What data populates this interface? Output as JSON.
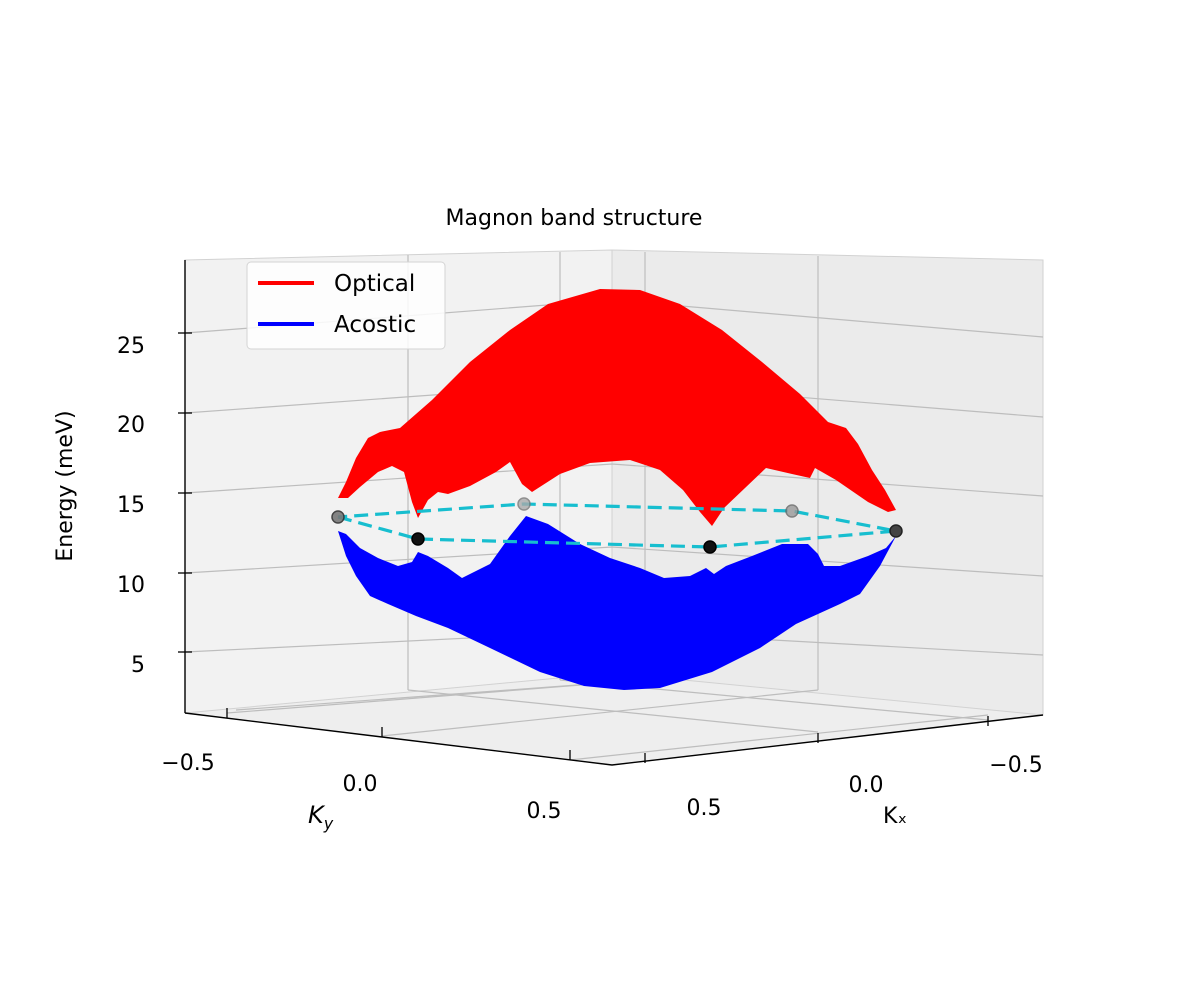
{
  "chart_data": {
    "type": "surface3d",
    "title": "Magnon band structure",
    "xlabel": "Kₓ",
    "ylabel_main": "K",
    "ylabel_sub": "y",
    "zlabel": "Energy (meV)",
    "xticks": [
      "−0.5",
      "0.0",
      "0.5"
    ],
    "yticks": [
      "−0.5",
      "0.0",
      "0.5"
    ],
    "zticks": [
      "5",
      "10",
      "15",
      "20",
      "25"
    ],
    "xlim": [
      -0.7,
      0.7
    ],
    "ylim": [
      -0.7,
      0.7
    ],
    "zlim": [
      1,
      30
    ],
    "grid": true,
    "legend_position": "upper-left",
    "series": [
      {
        "name": "Optical",
        "color": "#ff0000",
        "z_min": 12.5,
        "z_max": 27.5
      },
      {
        "name": "Acostic",
        "color": "#0000ff",
        "z_min": 2.5,
        "z_max": 13.5
      }
    ],
    "path": {
      "color": "#17becf",
      "style": "dashed",
      "points_energy": [
        13.2,
        12.1,
        11.6,
        12.5,
        13.6,
        14.1
      ]
    }
  }
}
